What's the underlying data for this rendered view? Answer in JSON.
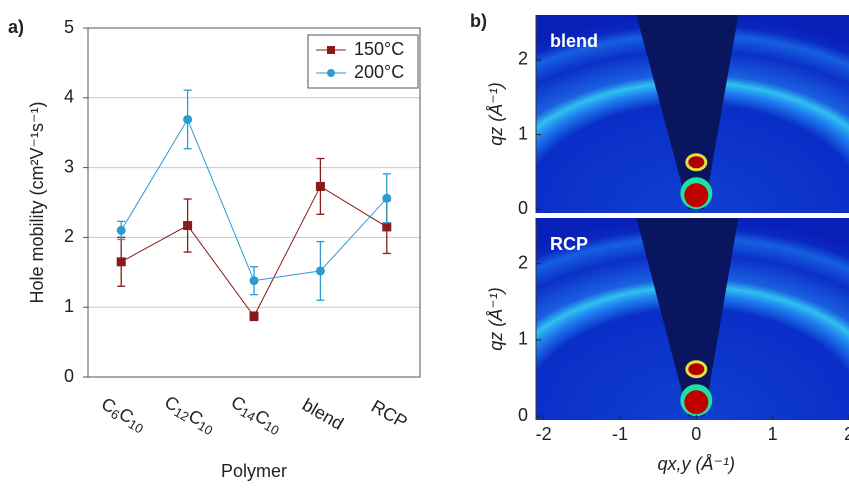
{
  "chart_data": [
    {
      "type": "line",
      "panel_label": "a)",
      "xlabel": "Polymer",
      "ylabel": "Hole mobility (cm²V⁻¹s⁻¹)",
      "categories": [
        "C6C10",
        "C12C10",
        "C14C10",
        "blend",
        "RCP"
      ],
      "ylim": [
        0,
        5
      ],
      "yticks": [
        0,
        1,
        2,
        3,
        4,
        5
      ],
      "grid": true,
      "legend": "upper right",
      "series": [
        {
          "name": "150°C",
          "color": "#8b1a1a",
          "marker": "square",
          "values": [
            1.65,
            2.17,
            0.87,
            2.73,
            2.15
          ],
          "errors": [
            0.35,
            0.38,
            0.06,
            0.4,
            0.38
          ]
        },
        {
          "name": "200°C",
          "color": "#2b9bd1",
          "marker": "circle",
          "values": [
            2.1,
            3.69,
            1.38,
            1.52,
            2.56
          ],
          "errors": [
            0.13,
            0.42,
            0.2,
            0.42,
            0.35
          ]
        }
      ]
    },
    {
      "type": "image",
      "panel_label": "b)",
      "xlabel": "qx,y (Å⁻¹)",
      "ylabel": "qz (Å⁻¹)",
      "panels": [
        "blend",
        "RCP"
      ],
      "xlim": [
        -2.1,
        2
      ],
      "xticks": [
        -2,
        -1,
        0,
        1,
        2
      ],
      "ylim": [
        -0.05,
        2.6
      ],
      "yticks": [
        0,
        1,
        2
      ]
    }
  ]
}
